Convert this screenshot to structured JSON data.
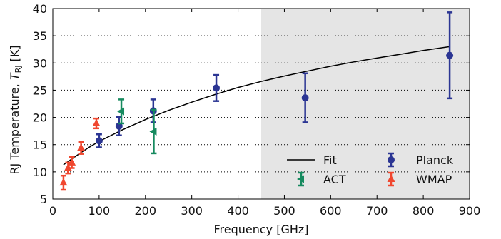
{
  "chart_data": {
    "type": "scatter",
    "title": "",
    "xlabel": "Frequency [GHz]",
    "ylabel_prefix": "RJ Temperature, ",
    "ylabel_symbol": "T",
    "ylabel_subscript": "RJ",
    "ylabel_suffix": " [K]",
    "xlim": [
      0,
      900
    ],
    "ylim": [
      5,
      40
    ],
    "xticks": [
      0,
      100,
      200,
      300,
      400,
      500,
      600,
      700,
      800,
      900
    ],
    "yticks": [
      5,
      10,
      15,
      20,
      25,
      30,
      35,
      40
    ],
    "grid": "horizontal-dotted",
    "shaded_region": {
      "x_from": 450,
      "x_to": 900,
      "color": "#e5e5e5"
    },
    "legend_placement": "lower-right",
    "series": [
      {
        "name": "Planck",
        "marker": "circle",
        "color": "#2b3593",
        "points": [
          {
            "x": 100,
            "y": 15.7,
            "err": 1.2
          },
          {
            "x": 143,
            "y": 18.4,
            "err": 1.7
          },
          {
            "x": 217,
            "y": 21.2,
            "err": 2.1
          },
          {
            "x": 353,
            "y": 25.4,
            "err": 2.4
          },
          {
            "x": 545,
            "y": 23.6,
            "err": 4.5
          },
          {
            "x": 857,
            "y": 31.4,
            "err": 7.9
          }
        ]
      },
      {
        "name": "ACT",
        "marker": "triangle-left",
        "color": "#168a5f",
        "points": [
          {
            "x": 148,
            "y": 21.1,
            "err": 2.2
          },
          {
            "x": 218,
            "y": 17.4,
            "err": 4.0
          }
        ]
      },
      {
        "name": "WMAP",
        "marker": "triangle-up",
        "color": "#f0472f",
        "points": [
          {
            "x": 23,
            "y": 8.0,
            "err": 1.3
          },
          {
            "x": 33,
            "y": 10.7,
            "err": 1.0
          },
          {
            "x": 41,
            "y": 11.7,
            "err": 1.0
          },
          {
            "x": 61,
            "y": 14.4,
            "err": 1.1
          },
          {
            "x": 94,
            "y": 18.9,
            "err": 0.9
          }
        ]
      }
    ],
    "fit": {
      "name": "Fit",
      "color": "#000000",
      "points": [
        {
          "x": 23,
          "y": 11.3
        },
        {
          "x": 40,
          "y": 12.3
        },
        {
          "x": 60,
          "y": 13.5
        },
        {
          "x": 80,
          "y": 14.6
        },
        {
          "x": 100,
          "y": 15.6
        },
        {
          "x": 150,
          "y": 17.7
        },
        {
          "x": 200,
          "y": 19.6
        },
        {
          "x": 250,
          "y": 21.3
        },
        {
          "x": 300,
          "y": 22.8
        },
        {
          "x": 350,
          "y": 24.2
        },
        {
          "x": 400,
          "y": 25.5
        },
        {
          "x": 450,
          "y": 26.6
        },
        {
          "x": 500,
          "y": 27.6
        },
        {
          "x": 550,
          "y": 28.5
        },
        {
          "x": 600,
          "y": 29.4
        },
        {
          "x": 650,
          "y": 30.2
        },
        {
          "x": 700,
          "y": 30.9
        },
        {
          "x": 750,
          "y": 31.6
        },
        {
          "x": 800,
          "y": 32.3
        },
        {
          "x": 857,
          "y": 33.0
        }
      ]
    },
    "legend": {
      "fit_label": "Fit",
      "planck_label": "Planck",
      "act_label": "ACT",
      "wmap_label": "WMAP"
    }
  }
}
